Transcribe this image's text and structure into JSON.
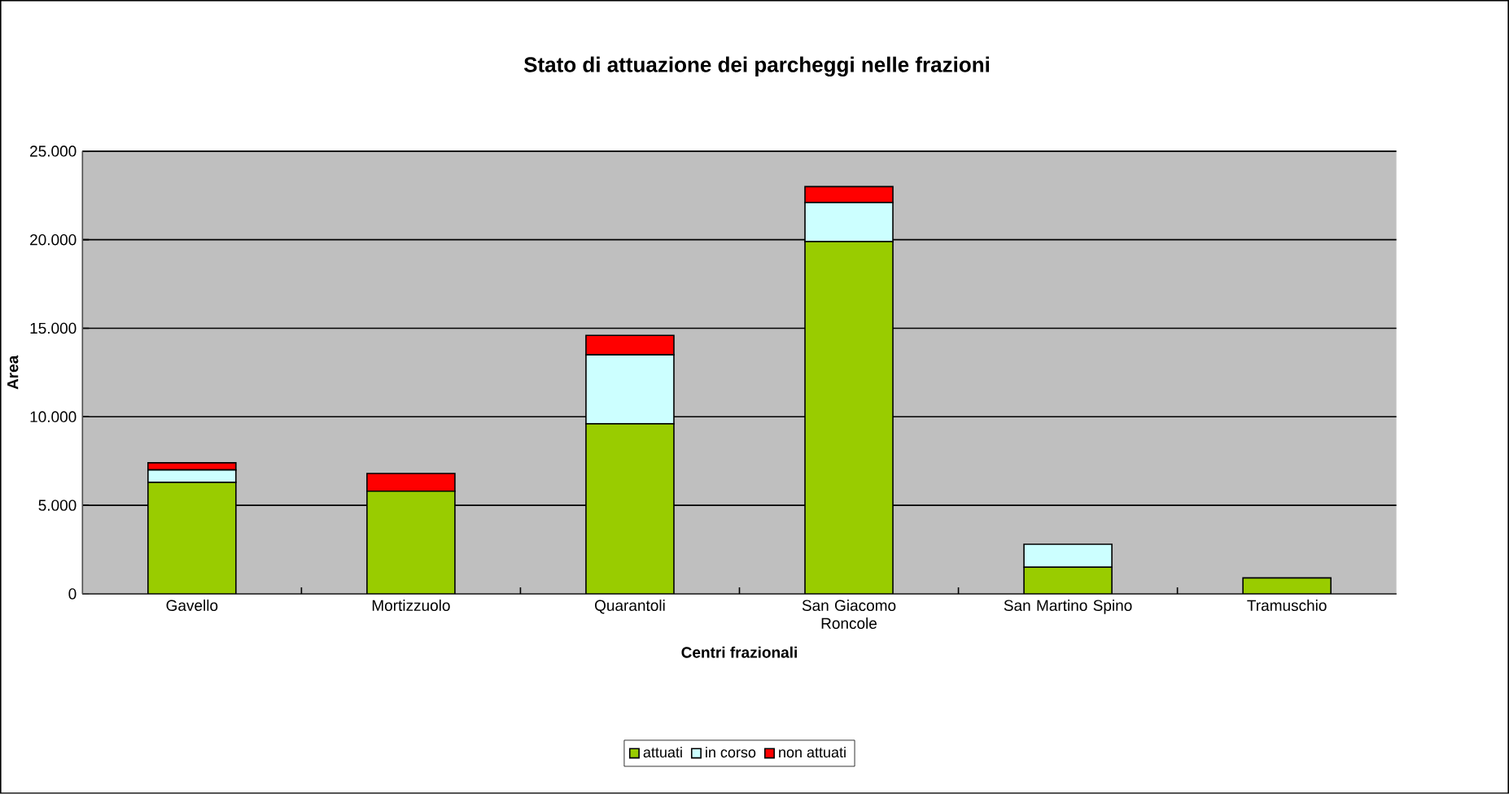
{
  "chart_data": {
    "type": "bar",
    "title": "Stato di attuazione dei parcheggi nelle frazioni",
    "xlabel": "Centri frazionali",
    "ylabel": "Area",
    "categories": [
      "Gavello",
      "Mortizzuolo",
      "Quarantoli",
      "San Giacomo Roncole",
      "San Martino Spino",
      "Tramuschio"
    ],
    "stacked": true,
    "series": [
      {
        "name": "attuati",
        "color": "#99cc00",
        "values": [
          6300,
          5800,
          9600,
          19900,
          1500,
          900
        ]
      },
      {
        "name": "in corso",
        "color": "#ccffff",
        "values": [
          700,
          0,
          3900,
          2200,
          1300,
          0
        ]
      },
      {
        "name": "non attuati",
        "color": "#ff0000",
        "values": [
          400,
          1000,
          1100,
          900,
          0,
          0
        ]
      }
    ],
    "ylim": [
      0,
      25000
    ],
    "yticks": [
      {
        "value": 0,
        "label": "0"
      },
      {
        "value": 5000,
        "label": "5.000"
      },
      {
        "value": 10000,
        "label": "10.000"
      },
      {
        "value": 15000,
        "label": "15.000"
      },
      {
        "value": 20000,
        "label": "20.000"
      },
      {
        "value": 25000,
        "label": "25.000"
      }
    ],
    "grid": "y",
    "legend": "bottom"
  }
}
